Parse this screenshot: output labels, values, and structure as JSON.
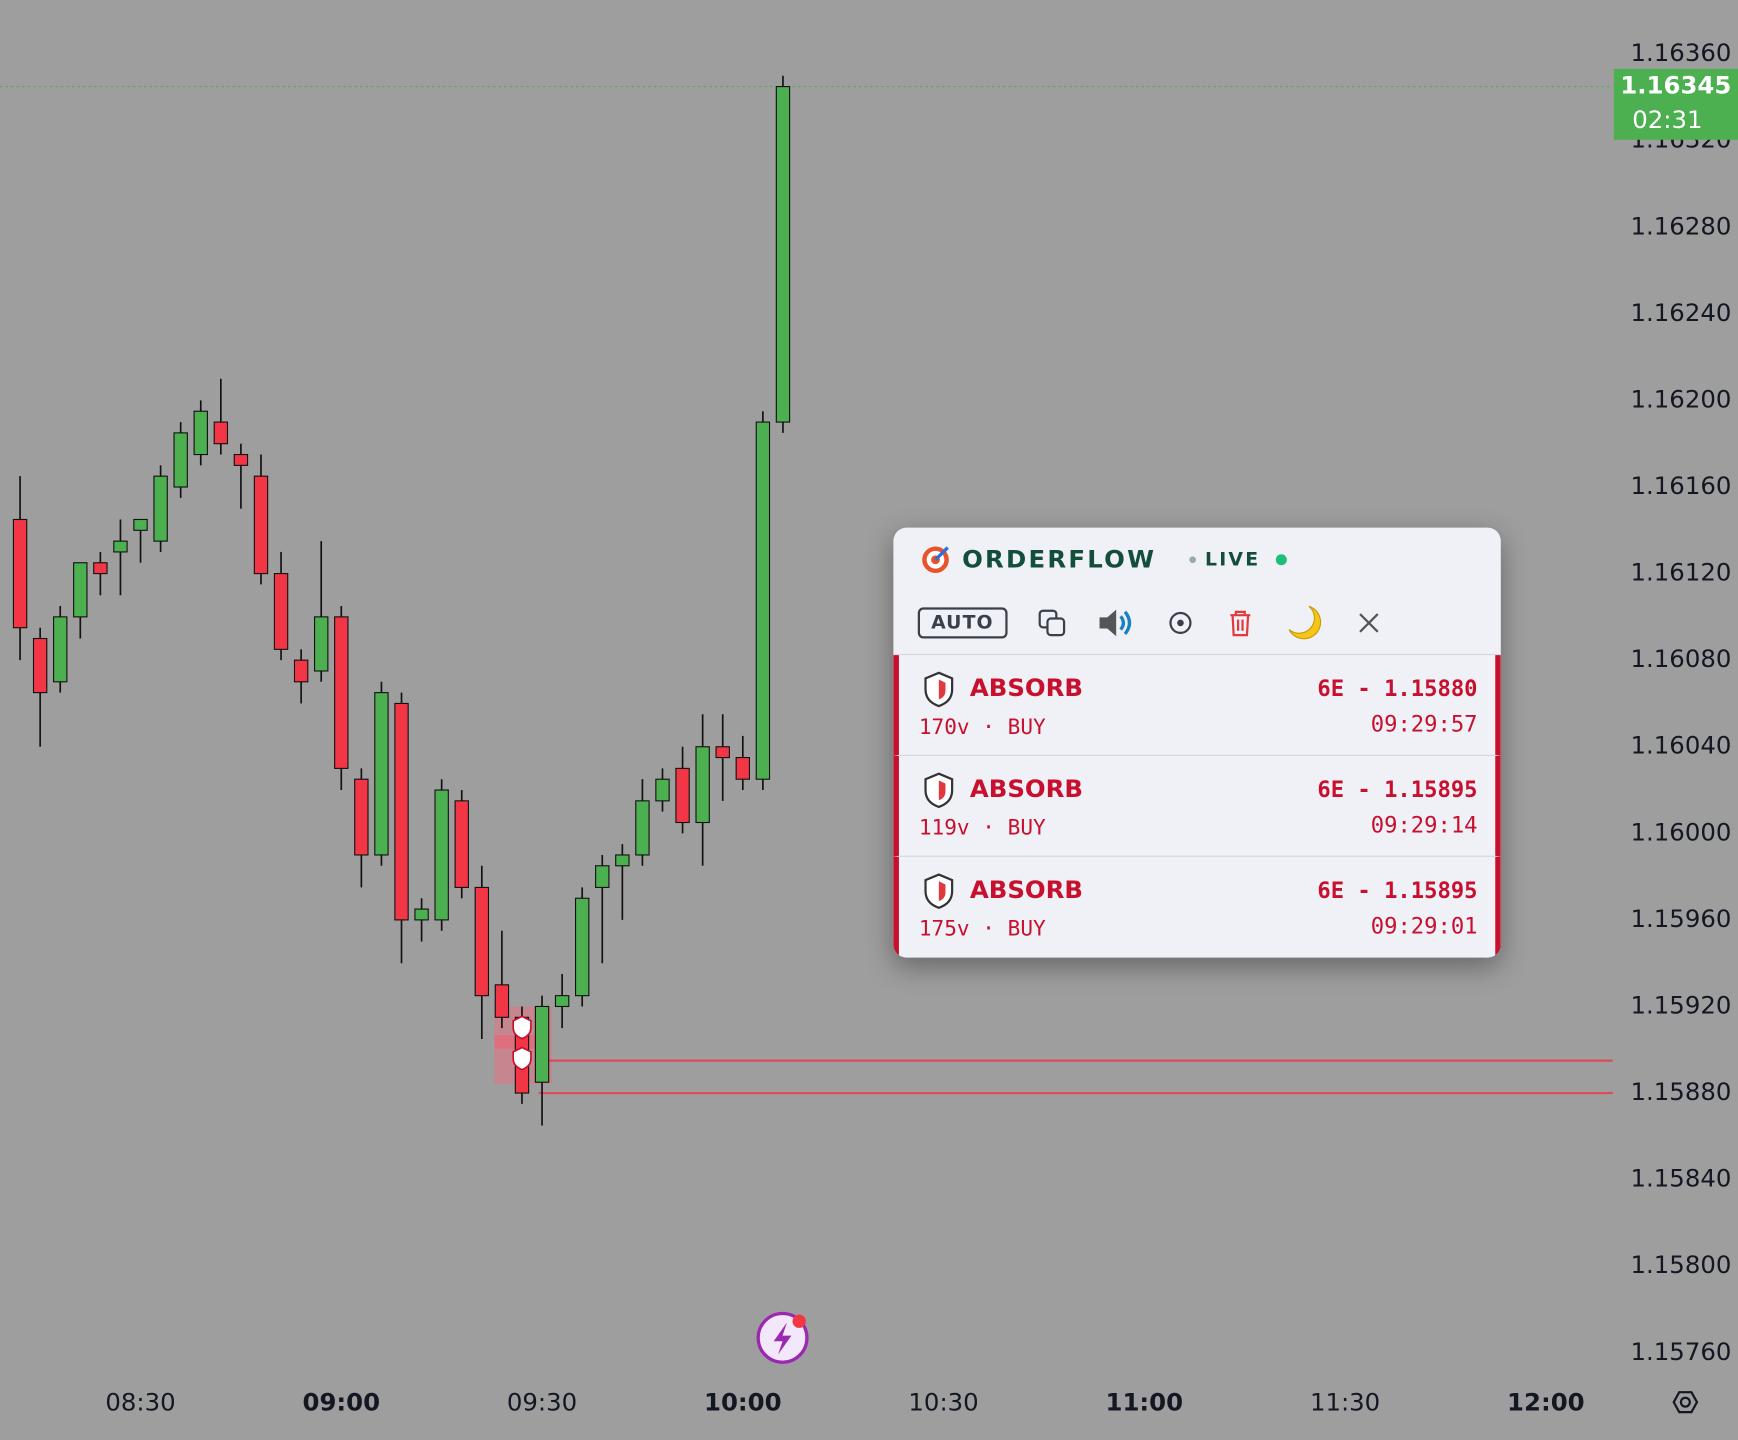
{
  "chart_data": {
    "type": "candlestick",
    "x": [
      "08:12",
      "08:15",
      "08:18",
      "08:21",
      "08:24",
      "08:27",
      "08:30",
      "08:33",
      "08:36",
      "08:39",
      "08:42",
      "08:45",
      "08:48",
      "08:51",
      "08:54",
      "08:57",
      "09:00",
      "09:03",
      "09:06",
      "09:09",
      "09:12",
      "09:15",
      "09:18",
      "09:21",
      "09:24",
      "09:27",
      "09:30",
      "09:33",
      "09:36",
      "09:39",
      "09:42",
      "09:45",
      "09:48",
      "09:51",
      "09:54",
      "09:57",
      "10:00",
      "10:03",
      "10:06"
    ],
    "open": [
      1.16145,
      1.1609,
      1.1607,
      1.161,
      1.16125,
      1.1613,
      1.1614,
      1.16135,
      1.1616,
      1.16175,
      1.1619,
      1.16175,
      1.16165,
      1.1612,
      1.1608,
      1.16075,
      1.161,
      1.16025,
      1.1599,
      1.1606,
      1.1596,
      1.1596,
      1.16015,
      1.15975,
      1.1593,
      1.15915,
      1.15885,
      1.1592,
      1.15925,
      1.15975,
      1.15985,
      1.1599,
      1.16015,
      1.1603,
      1.16005,
      1.1604,
      1.16035,
      1.16025,
      1.1619
    ],
    "high": [
      1.16165,
      1.16095,
      1.16105,
      1.16125,
      1.1613,
      1.16145,
      1.16145,
      1.1617,
      1.1619,
      1.162,
      1.1621,
      1.1618,
      1.16175,
      1.1613,
      1.16085,
      1.16135,
      1.16105,
      1.1603,
      1.1607,
      1.16065,
      1.1597,
      1.16025,
      1.1602,
      1.15985,
      1.15955,
      1.1592,
      1.15925,
      1.15935,
      1.15975,
      1.1599,
      1.15995,
      1.16025,
      1.1603,
      1.1604,
      1.16055,
      1.16055,
      1.16045,
      1.16195,
      1.1635
    ],
    "low": [
      1.1608,
      1.1604,
      1.16065,
      1.1609,
      1.1611,
      1.1611,
      1.16125,
      1.1613,
      1.16155,
      1.1617,
      1.16175,
      1.1615,
      1.16115,
      1.1608,
      1.1606,
      1.1607,
      1.1602,
      1.15975,
      1.15985,
      1.1594,
      1.1595,
      1.15955,
      1.1597,
      1.15905,
      1.1591,
      1.15875,
      1.15865,
      1.1591,
      1.1592,
      1.1594,
      1.1596,
      1.15985,
      1.1601,
      1.16,
      1.15985,
      1.16015,
      1.1602,
      1.1602,
      1.16185
    ],
    "close": [
      1.16095,
      1.16065,
      1.161,
      1.16125,
      1.1612,
      1.16135,
      1.16145,
      1.16165,
      1.16185,
      1.16195,
      1.1618,
      1.1617,
      1.1612,
      1.16085,
      1.1607,
      1.161,
      1.1603,
      1.1599,
      1.16065,
      1.1596,
      1.15965,
      1.1602,
      1.15975,
      1.15925,
      1.15915,
      1.1588,
      1.1592,
      1.15925,
      1.1597,
      1.15985,
      1.1599,
      1.16015,
      1.16025,
      1.16005,
      1.1604,
      1.16035,
      1.16025,
      1.1619,
      1.16345
    ],
    "up_color": "#4caf50",
    "down_color": "#f23645",
    "xlim": [
      "08:09",
      "12:10"
    ],
    "xticks": [
      "08:30",
      "09:00",
      "09:30",
      "10:00",
      "10:30",
      "11:00",
      "11:30",
      "12:00"
    ],
    "ylim": [
      1.1575,
      1.16385
    ],
    "yticks": [
      {
        "value": 1.1636,
        "label": "1.16360"
      },
      {
        "value": 1.1632,
        "label": "1.16320"
      },
      {
        "value": 1.1628,
        "label": "1.16280"
      },
      {
        "value": 1.1624,
        "label": "1.16240"
      },
      {
        "value": 1.162,
        "label": "1.16200"
      },
      {
        "value": 1.1616,
        "label": "1.16160"
      },
      {
        "value": 1.1612,
        "label": "1.16120"
      },
      {
        "value": 1.1608,
        "label": "1.16080"
      },
      {
        "value": 1.1604,
        "label": "1.16040"
      },
      {
        "value": 1.16,
        "label": "1.16000"
      },
      {
        "value": 1.1596,
        "label": "1.15960"
      },
      {
        "value": 1.1592,
        "label": "1.15920"
      },
      {
        "value": 1.1588,
        "label": "1.15880"
      },
      {
        "value": 1.1584,
        "label": "1.15840"
      },
      {
        "value": 1.158,
        "label": "1.15800"
      },
      {
        "value": 1.1576,
        "label": "1.15760"
      }
    ],
    "grid": false,
    "levels": [
      1.15895,
      1.1588
    ],
    "level_color": "#e04a5a",
    "last_price": {
      "value": 1.16345,
      "label": "1.16345",
      "countdown": "02:31",
      "color": "#4caf50"
    }
  },
  "panel": {
    "title": "ORDERFLOW",
    "status": "LIVE",
    "mode": "AUTO",
    "alerts": [
      {
        "type": "ABSORB",
        "details": "170v · BUY",
        "quote": "6E - 1.15880",
        "time": "09:29:57"
      },
      {
        "type": "ABSORB",
        "details": "119v · BUY",
        "quote": "6E - 1.15895",
        "time": "09:29:14"
      },
      {
        "type": "ABSORB",
        "details": "175v · BUY",
        "quote": "6E - 1.15895",
        "time": "09:29:01"
      }
    ]
  }
}
